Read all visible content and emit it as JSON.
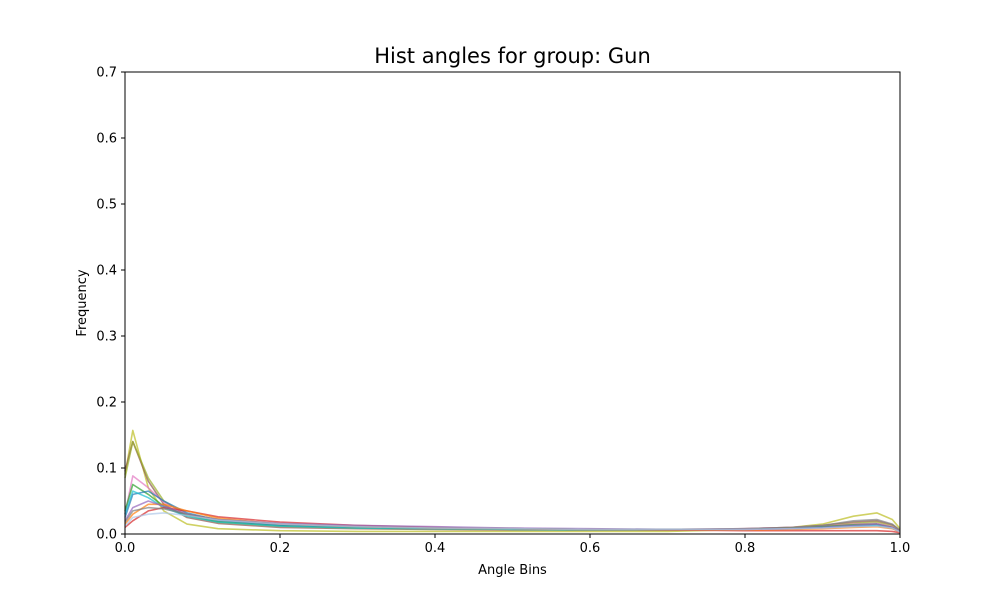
{
  "chart_data": {
    "type": "line",
    "title": "Hist angles for group: Gun",
    "xlabel": "Angle Bins",
    "ylabel": "Frequency",
    "xlim": [
      0,
      1.0
    ],
    "ylim": [
      0,
      0.7
    ],
    "xticks": [
      "0.0",
      "0.2",
      "0.4",
      "0.6",
      "0.8",
      "1.0"
    ],
    "yticks": [
      "0.0",
      "0.1",
      "0.2",
      "0.3",
      "0.4",
      "0.5",
      "0.6",
      "0.7"
    ],
    "grid": false,
    "legend": "none",
    "x": [
      0,
      0.01,
      0.03,
      0.05,
      0.08,
      0.12,
      0.2,
      0.3,
      0.4,
      0.5,
      0.6,
      0.7,
      0.8,
      0.86,
      0.9,
      0.94,
      0.97,
      0.99,
      1.0
    ],
    "series": [
      {
        "color": "#bcbd22",
        "values": [
          0.09,
          0.157,
          0.07,
          0.035,
          0.015,
          0.008,
          0.005,
          0.004,
          0.004,
          0.004,
          0.004,
          0.004,
          0.007,
          0.01,
          0.015,
          0.027,
          0.032,
          0.022,
          0.008
        ]
      },
      {
        "color": "#8c564b",
        "values": [
          0.095,
          0.14,
          0.08,
          0.045,
          0.025,
          0.016,
          0.01,
          0.008,
          0.007,
          0.006,
          0.006,
          0.006,
          0.008,
          0.01,
          0.013,
          0.018,
          0.02,
          0.014,
          0.005
        ]
      },
      {
        "color": "#9ab02a",
        "values": [
          0.085,
          0.14,
          0.085,
          0.05,
          0.028,
          0.018,
          0.012,
          0.009,
          0.008,
          0.007,
          0.006,
          0.006,
          0.007,
          0.009,
          0.012,
          0.016,
          0.018,
          0.012,
          0.004
        ]
      },
      {
        "color": "#e377c2",
        "values": [
          0.03,
          0.088,
          0.07,
          0.048,
          0.03,
          0.02,
          0.013,
          0.01,
          0.009,
          0.008,
          0.007,
          0.007,
          0.008,
          0.01,
          0.012,
          0.015,
          0.016,
          0.011,
          0.004
        ]
      },
      {
        "color": "#2ca02c",
        "values": [
          0.035,
          0.075,
          0.06,
          0.042,
          0.028,
          0.019,
          0.013,
          0.01,
          0.009,
          0.008,
          0.007,
          0.007,
          0.007,
          0.009,
          0.011,
          0.014,
          0.015,
          0.01,
          0.004
        ]
      },
      {
        "color": "#1f77b4",
        "values": [
          0.025,
          0.06,
          0.065,
          0.05,
          0.032,
          0.021,
          0.014,
          0.011,
          0.009,
          0.008,
          0.007,
          0.007,
          0.007,
          0.008,
          0.01,
          0.012,
          0.013,
          0.009,
          0.003
        ]
      },
      {
        "color": "#17becf",
        "values": [
          0.03,
          0.065,
          0.055,
          0.04,
          0.027,
          0.018,
          0.012,
          0.009,
          0.008,
          0.007,
          0.006,
          0.006,
          0.007,
          0.008,
          0.01,
          0.012,
          0.013,
          0.009,
          0.003
        ]
      },
      {
        "color": "#d62728",
        "values": [
          0.01,
          0.02,
          0.035,
          0.04,
          0.035,
          0.026,
          0.018,
          0.013,
          0.01,
          0.008,
          0.007,
          0.006,
          0.005,
          0.005,
          0.005,
          0.005,
          0.005,
          0.004,
          0.002
        ]
      },
      {
        "color": "#ff7f0e",
        "values": [
          0.015,
          0.03,
          0.045,
          0.045,
          0.035,
          0.024,
          0.015,
          0.011,
          0.009,
          0.008,
          0.007,
          0.006,
          0.006,
          0.007,
          0.008,
          0.01,
          0.011,
          0.008,
          0.003
        ]
      },
      {
        "color": "#9467bd",
        "values": [
          0.02,
          0.04,
          0.05,
          0.042,
          0.03,
          0.022,
          0.016,
          0.013,
          0.011,
          0.009,
          0.008,
          0.007,
          0.007,
          0.008,
          0.01,
          0.013,
          0.015,
          0.01,
          0.004
        ]
      },
      {
        "color": "#7f7f7f",
        "values": [
          0.018,
          0.035,
          0.04,
          0.038,
          0.03,
          0.022,
          0.015,
          0.011,
          0.009,
          0.008,
          0.007,
          0.007,
          0.008,
          0.01,
          0.013,
          0.02,
          0.022,
          0.015,
          0.006
        ]
      },
      {
        "color": "#aec7e8",
        "values": [
          0.012,
          0.025,
          0.03,
          0.032,
          0.028,
          0.021,
          0.015,
          0.011,
          0.009,
          0.008,
          0.007,
          0.007,
          0.007,
          0.008,
          0.009,
          0.011,
          0.012,
          0.009,
          0.003
        ]
      }
    ]
  }
}
